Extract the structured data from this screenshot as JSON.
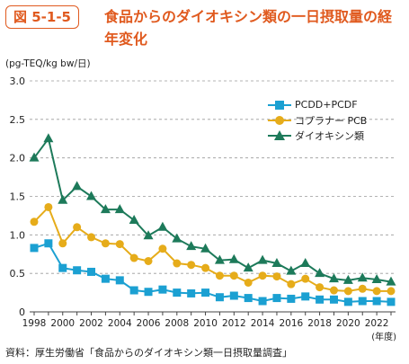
{
  "figure": {
    "badge": "図 5-1-5",
    "title": "食品からのダイオキシン類の一日摂取量の経年変化",
    "unit": "(pg-TEQ/kg bw/日)",
    "x_unit": "(年度)",
    "source": "資料：厚生労働省「食品からのダイオキシン類一日摂取量調査」"
  },
  "chart_data": {
    "type": "line",
    "title": "食品からのダイオキシン類の一日摂取量の経年変化",
    "xlabel": "(年度)",
    "ylabel": "(pg-TEQ/kg bw/日)",
    "x": [
      1998,
      1999,
      2000,
      2001,
      2002,
      2003,
      2004,
      2005,
      2006,
      2007,
      2008,
      2009,
      2010,
      2011,
      2012,
      2013,
      2014,
      2015,
      2016,
      2017,
      2018,
      2019,
      2020,
      2021,
      2022,
      2023
    ],
    "x_ticks": [
      "1998",
      "2000",
      "2002",
      "2004",
      "2006",
      "2008",
      "2010",
      "2012",
      "2014",
      "2016",
      "2018",
      "2020",
      "2022"
    ],
    "ylim": [
      0,
      3.0
    ],
    "y_ticks": [
      "0",
      "0.5",
      "1.0",
      "1.5",
      "2.0",
      "2.5",
      "3.0"
    ],
    "grid": "horizontal dashed",
    "legend_position": "top-right",
    "series": [
      {
        "name": "PCDD+PCDF",
        "color": "#1ba0d2",
        "marker": "square",
        "values": [
          0.83,
          0.89,
          0.57,
          0.54,
          0.52,
          0.43,
          0.41,
          0.28,
          0.26,
          0.29,
          0.25,
          0.24,
          0.25,
          0.19,
          0.21,
          0.18,
          0.14,
          0.18,
          0.17,
          0.2,
          0.16,
          0.16,
          0.13,
          0.14,
          0.14,
          0.13
        ]
      },
      {
        "name": "コプラナー PCB",
        "color": "#e6ac1a",
        "marker": "circle",
        "values": [
          1.17,
          1.36,
          0.89,
          1.1,
          0.97,
          0.89,
          0.88,
          0.7,
          0.66,
          0.82,
          0.63,
          0.61,
          0.57,
          0.47,
          0.47,
          0.38,
          0.47,
          0.46,
          0.36,
          0.43,
          0.32,
          0.28,
          0.27,
          0.3,
          0.27,
          0.27
        ]
      },
      {
        "name": "ダイオキシン類",
        "color": "#1d7a5a",
        "marker": "triangle",
        "values": [
          2.0,
          2.25,
          1.45,
          1.63,
          1.5,
          1.33,
          1.33,
          1.19,
          0.99,
          1.1,
          0.95,
          0.85,
          0.82,
          0.67,
          0.68,
          0.57,
          0.67,
          0.63,
          0.53,
          0.63,
          0.5,
          0.43,
          0.41,
          0.44,
          0.42,
          0.39
        ]
      }
    ]
  }
}
